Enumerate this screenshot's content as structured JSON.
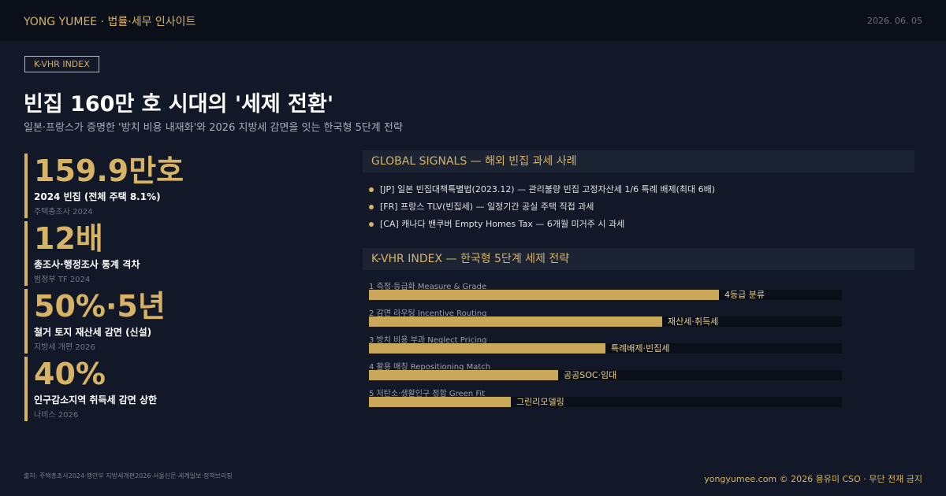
{
  "header": {
    "brand": "YONG YUMEE · 법률·세무 인사이트",
    "date": "2026. 06. 05"
  },
  "tag": "K-VHR INDEX",
  "title": "빈집 160만 호 시대의 '세제 전환'",
  "subtitle": "일본·프랑스가 증명한 '방치 비용 내재화'와 2026 지방세 감면을 잇는 한국형 5단계 전략",
  "stats": [
    {
      "value": "159.9만호",
      "label": "2024 빈집 (전체 주택 8.1%)",
      "source": "주택총조사 2024"
    },
    {
      "value": "12배",
      "label": "총조사·행정조사 통계 격차",
      "source": "범정부 TF 2024"
    },
    {
      "value": "50%·5년",
      "label": "철거 토지 재산세 감면 (신설)",
      "source": "지방세 개편 2026"
    },
    {
      "value": "40%",
      "label": "인구감소지역 취득세 감면 상한",
      "source": "나비스 2026"
    }
  ],
  "global": {
    "heading": "GLOBAL SIGNALS — 해외 빈집 과세 사례",
    "items": [
      "[JP]  일본 빈집대책특별법(2023.12) — 관리불량 빈집 고정자산세 1/6 특례 배제(최대 6배)",
      "[FR]  프랑스 TLV(빈집세) — 일정기간 공실 주택 직접 과세",
      "[CA]  캐나다 밴쿠버 Empty Homes Tax — 6개월 미거주 시 과세"
    ]
  },
  "index": {
    "heading": "K-VHR INDEX — 한국형 5단계 세제 전략",
    "items": [
      {
        "label": "1 측정·등급화 Measure & Grade",
        "value": 74,
        "tag": "4등급 분류"
      },
      {
        "label": "2 감면 라우팅 Incentive Routing",
        "value": 62,
        "tag": "재산세·취득세"
      },
      {
        "label": "3 방치 비용 부과 Neglect Pricing",
        "value": 50,
        "tag": "특례배제·빈집세"
      },
      {
        "label": "4 활용 매칭 Repositioning Match",
        "value": 40,
        "tag": "공공SOC·임대"
      },
      {
        "label": "5 저탄소·생활인구 정합 Green Fit",
        "value": 30,
        "tag": "그린리모델링"
      }
    ]
  },
  "footer": {
    "sources": "출처: 주택총조사2024·행안부 지방세개편2026·서울신문·세계일보·정책브리핑",
    "credit": "yongyumee.com  ©  2026 용유미 CSO  ·  무단 전재 금지"
  }
}
